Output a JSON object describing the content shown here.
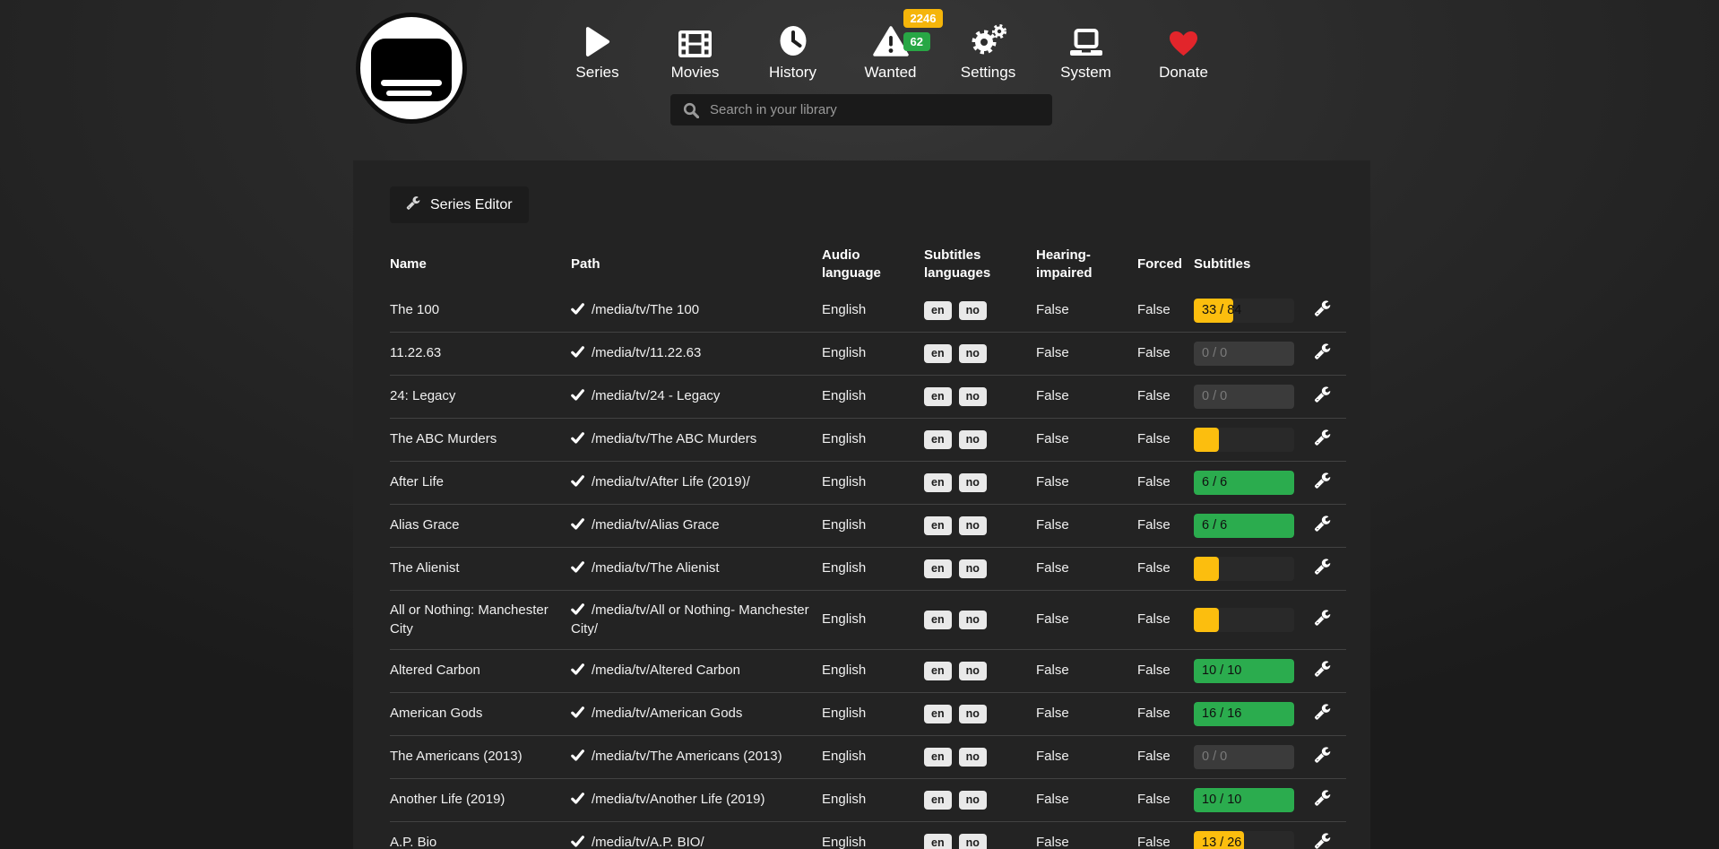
{
  "nav": {
    "search_placeholder": "Search in your library",
    "items": [
      {
        "id": "series",
        "label": "Series",
        "icon": "play-icon"
      },
      {
        "id": "movies",
        "label": "Movies",
        "icon": "film-icon"
      },
      {
        "id": "history",
        "label": "History",
        "icon": "clock-icon"
      },
      {
        "id": "wanted",
        "label": "Wanted",
        "icon": "warning-icon",
        "badges": [
          {
            "value": "2246",
            "color": "#f5b50a"
          },
          {
            "value": "62",
            "color": "#28a745"
          }
        ]
      },
      {
        "id": "settings",
        "label": "Settings",
        "icon": "gears-icon"
      },
      {
        "id": "system",
        "label": "System",
        "icon": "laptop-icon"
      },
      {
        "id": "donate",
        "label": "Donate",
        "icon": "heart-icon"
      }
    ]
  },
  "toolbar": {
    "series_editor_label": "Series Editor"
  },
  "table": {
    "headers": [
      "Name",
      "Path",
      "Audio language",
      "Subtitles languages",
      "Hearing-impaired",
      "Forced",
      "Subtitles"
    ],
    "rows": [
      {
        "name": "The 100",
        "path": "/media/tv/The 100",
        "audio": "English",
        "subtitle_langs": [
          "en",
          "no"
        ],
        "hearing_impaired": "False",
        "forced": "False",
        "progress": {
          "label": "33 / 84",
          "percent": 39,
          "state": "warning"
        }
      },
      {
        "name": "11.22.63",
        "path": "/media/tv/11.22.63",
        "audio": "English",
        "subtitle_langs": [
          "en",
          "no"
        ],
        "hearing_impaired": "False",
        "forced": "False",
        "progress": {
          "label": "0 / 0",
          "percent": 0,
          "state": "empty"
        }
      },
      {
        "name": "24: Legacy",
        "path": "/media/tv/24 - Legacy",
        "audio": "English",
        "subtitle_langs": [
          "en",
          "no"
        ],
        "hearing_impaired": "False",
        "forced": "False",
        "progress": {
          "label": "0 / 0",
          "percent": 0,
          "state": "empty"
        }
      },
      {
        "name": "The ABC Murders",
        "path": "/media/tv/The ABC Murders",
        "audio": "English",
        "subtitle_langs": [
          "en",
          "no"
        ],
        "hearing_impaired": "False",
        "forced": "False",
        "progress": {
          "label": "",
          "percent": 25,
          "state": "warning"
        }
      },
      {
        "name": "After Life",
        "path": "/media/tv/After Life (2019)/",
        "audio": "English",
        "subtitle_langs": [
          "en",
          "no"
        ],
        "hearing_impaired": "False",
        "forced": "False",
        "progress": {
          "label": "6 / 6",
          "percent": 100,
          "state": "success"
        }
      },
      {
        "name": "Alias Grace",
        "path": "/media/tv/Alias Grace",
        "audio": "English",
        "subtitle_langs": [
          "en",
          "no"
        ],
        "hearing_impaired": "False",
        "forced": "False",
        "progress": {
          "label": "6 / 6",
          "percent": 100,
          "state": "success"
        }
      },
      {
        "name": "The Alienist",
        "path": "/media/tv/The Alienist",
        "audio": "English",
        "subtitle_langs": [
          "en",
          "no"
        ],
        "hearing_impaired": "False",
        "forced": "False",
        "progress": {
          "label": "",
          "percent": 25,
          "state": "warning"
        }
      },
      {
        "name": "All or Nothing: Manchester City",
        "path": "/media/tv/All or Nothing- Manchester City/",
        "audio": "English",
        "subtitle_langs": [
          "en",
          "no"
        ],
        "hearing_impaired": "False",
        "forced": "False",
        "progress": {
          "label": "",
          "percent": 25,
          "state": "warning"
        }
      },
      {
        "name": "Altered Carbon",
        "path": "/media/tv/Altered Carbon",
        "audio": "English",
        "subtitle_langs": [
          "en",
          "no"
        ],
        "hearing_impaired": "False",
        "forced": "False",
        "progress": {
          "label": "10 / 10",
          "percent": 100,
          "state": "success"
        }
      },
      {
        "name": "American Gods",
        "path": "/media/tv/American Gods",
        "audio": "English",
        "subtitle_langs": [
          "en",
          "no"
        ],
        "hearing_impaired": "False",
        "forced": "False",
        "progress": {
          "label": "16 / 16",
          "percent": 100,
          "state": "success"
        }
      },
      {
        "name": "The Americans (2013)",
        "path": "/media/tv/The Americans (2013)",
        "audio": "English",
        "subtitle_langs": [
          "en",
          "no"
        ],
        "hearing_impaired": "False",
        "forced": "False",
        "progress": {
          "label": "0 / 0",
          "percent": 0,
          "state": "empty"
        }
      },
      {
        "name": "Another Life (2019)",
        "path": "/media/tv/Another Life (2019)",
        "audio": "English",
        "subtitle_langs": [
          "en",
          "no"
        ],
        "hearing_impaired": "False",
        "forced": "False",
        "progress": {
          "label": "10 / 10",
          "percent": 100,
          "state": "success"
        }
      },
      {
        "name": "A.P. Bio",
        "path": "/media/tv/A.P. BIO/",
        "audio": "English",
        "subtitle_langs": [
          "en",
          "no"
        ],
        "hearing_impaired": "False",
        "forced": "False",
        "progress": {
          "label": "13 / 26",
          "percent": 50,
          "state": "warning"
        }
      }
    ]
  },
  "colors": {
    "warning": "#fcbe0e",
    "success": "#2bac4e",
    "badge_orange": "#f5b50a",
    "badge_green": "#28a745",
    "donate_red": "#e2252b"
  }
}
